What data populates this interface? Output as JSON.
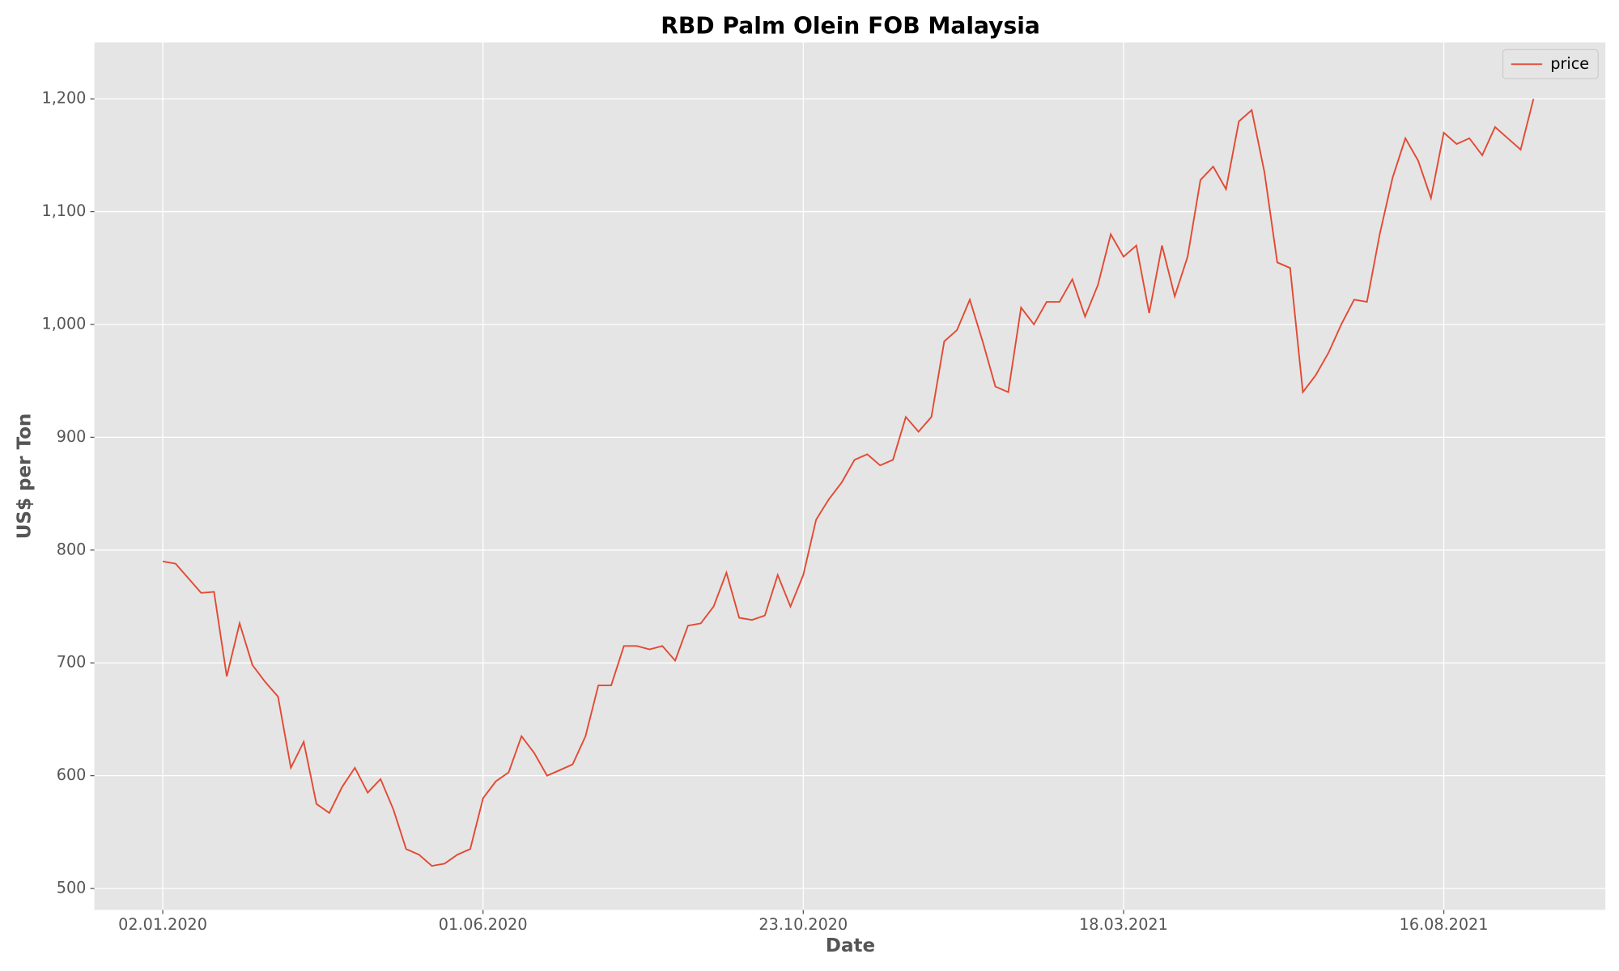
{
  "chart_data": {
    "type": "line",
    "title": "RBD Palm Olein FOB Malaysia",
    "x_label": "Date",
    "y_label": "US$ per Ton",
    "categories": [
      "02.01.2020",
      null,
      null,
      null,
      null,
      null,
      null,
      null,
      null,
      null,
      null,
      null,
      null,
      null,
      null,
      null,
      null,
      null,
      null,
      null,
      null,
      null,
      null,
      null,
      null,
      "01.06.2020",
      null,
      null,
      null,
      null,
      null,
      null,
      null,
      null,
      null,
      null,
      null,
      null,
      null,
      null,
      null,
      null,
      null,
      null,
      null,
      null,
      null,
      null,
      null,
      null,
      "23.10.2020",
      null,
      null,
      null,
      null,
      null,
      null,
      null,
      null,
      null,
      null,
      null,
      null,
      null,
      null,
      null,
      null,
      null,
      null,
      null,
      null,
      null,
      null,
      null,
      null,
      "18.03.2021",
      null,
      null,
      null,
      null,
      null,
      null,
      null,
      null,
      null,
      null,
      null,
      null,
      null,
      null,
      null,
      null,
      null,
      null,
      null,
      null,
      null,
      null,
      null,
      null,
      "16.08.2021",
      null,
      null,
      null,
      null,
      null,
      null,
      null
    ],
    "series": [
      {
        "name": "price",
        "color": "#e24a33",
        "values": [
          790,
          788,
          775,
          762,
          763,
          688,
          735,
          698,
          683,
          670,
          607,
          630,
          575,
          567,
          590,
          607,
          585,
          597,
          570,
          535,
          530,
          520,
          522,
          530,
          535,
          580,
          595,
          603,
          635,
          620,
          600,
          605,
          610,
          635,
          680,
          680,
          715,
          715,
          712,
          715,
          702,
          733,
          735,
          750,
          780,
          740,
          738,
          742,
          778,
          750,
          778,
          827,
          845,
          860,
          880,
          885,
          875,
          880,
          918,
          905,
          918,
          985,
          995,
          1022,
          985,
          945,
          940,
          1015,
          1000,
          1020,
          1020,
          1040,
          1007,
          1035,
          1080,
          1060,
          1070,
          1010,
          1070,
          1025,
          1060,
          1128,
          1140,
          1120,
          1180,
          1190,
          1135,
          1055,
          1050,
          940,
          955,
          975,
          1000,
          1022,
          1020,
          1080,
          1130,
          1165,
          1145,
          1112,
          1170,
          1160,
          1165,
          1150,
          1175,
          1165,
          1155,
          1200
        ]
      }
    ],
    "ylim": [
      481,
      1250
    ],
    "yticks": [
      500,
      600,
      700,
      800,
      900,
      {
        "value": 1000,
        "label": "1,000"
      },
      {
        "value": 1100,
        "label": "1,100"
      },
      {
        "value": 1200,
        "label": "1,200"
      }
    ],
    "grid": true,
    "legend": "upper right"
  }
}
